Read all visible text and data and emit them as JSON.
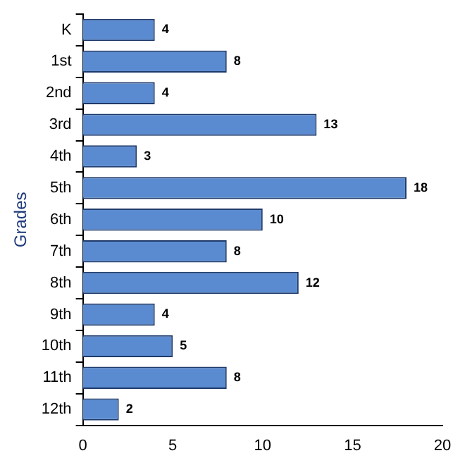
{
  "chart_data": {
    "type": "bar",
    "orientation": "horizontal",
    "ylabel": "Grades",
    "categories": [
      "K",
      "1st",
      "2nd",
      "3rd",
      "4th",
      "5th",
      "6th",
      "7th",
      "8th",
      "9th",
      "10th",
      "11th",
      "12th"
    ],
    "values": [
      4,
      8,
      4,
      13,
      3,
      18,
      10,
      8,
      12,
      4,
      5,
      8,
      2
    ],
    "color": "#5a8bd0",
    "xlim": [
      0,
      20
    ],
    "xticks": [
      0,
      5,
      10,
      15,
      20
    ],
    "grid": false,
    "data_labels": true,
    "legend": false
  }
}
